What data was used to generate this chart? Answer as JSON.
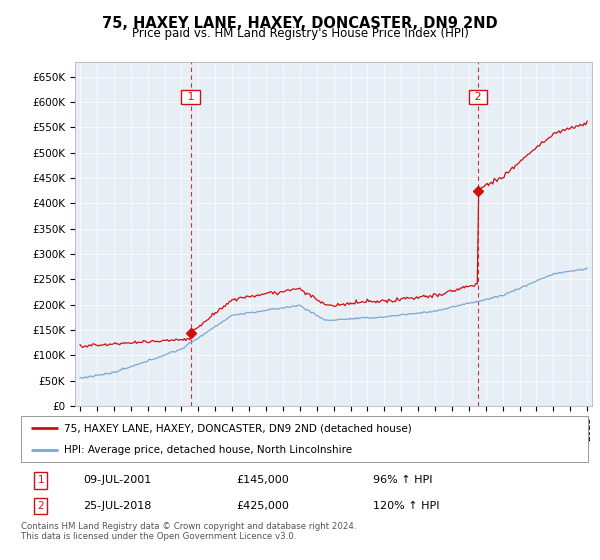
{
  "title": "75, HAXEY LANE, HAXEY, DONCASTER, DN9 2ND",
  "subtitle": "Price paid vs. HM Land Registry's House Price Index (HPI)",
  "ylabel_ticks": [
    "£0",
    "£50K",
    "£100K",
    "£150K",
    "£200K",
    "£250K",
    "£300K",
    "£350K",
    "£400K",
    "£450K",
    "£500K",
    "£550K",
    "£600K",
    "£650K"
  ],
  "ytick_values": [
    0,
    50000,
    100000,
    150000,
    200000,
    250000,
    300000,
    350000,
    400000,
    450000,
    500000,
    550000,
    600000,
    650000
  ],
  "ylim": [
    0,
    680000
  ],
  "sale1_date": 2001.54,
  "sale1_price": 145000,
  "sale1_label": "1",
  "sale2_date": 2018.54,
  "sale2_price": 425000,
  "sale2_label": "2",
  "hpi_color": "#7aa8d4",
  "price_color": "#cc1111",
  "marker_color": "#cc1111",
  "dashed_line_color": "#cc1111",
  "background_color": "#ffffff",
  "plot_bg_color": "#e8eef5",
  "grid_color": "#ffffff",
  "legend_label1": "75, HAXEY LANE, HAXEY, DONCASTER, DN9 2ND (detached house)",
  "legend_label2": "HPI: Average price, detached house, North Lincolnshire",
  "footnote": "Contains HM Land Registry data © Crown copyright and database right 2024.\nThis data is licensed under the Open Government Licence v3.0.",
  "annot1_date": "09-JUL-2001",
  "annot1_price": "£145,000",
  "annot1_hpi": "96% ↑ HPI",
  "annot2_date": "25-JUL-2018",
  "annot2_price": "£425,000",
  "annot2_hpi": "120% ↑ HPI"
}
